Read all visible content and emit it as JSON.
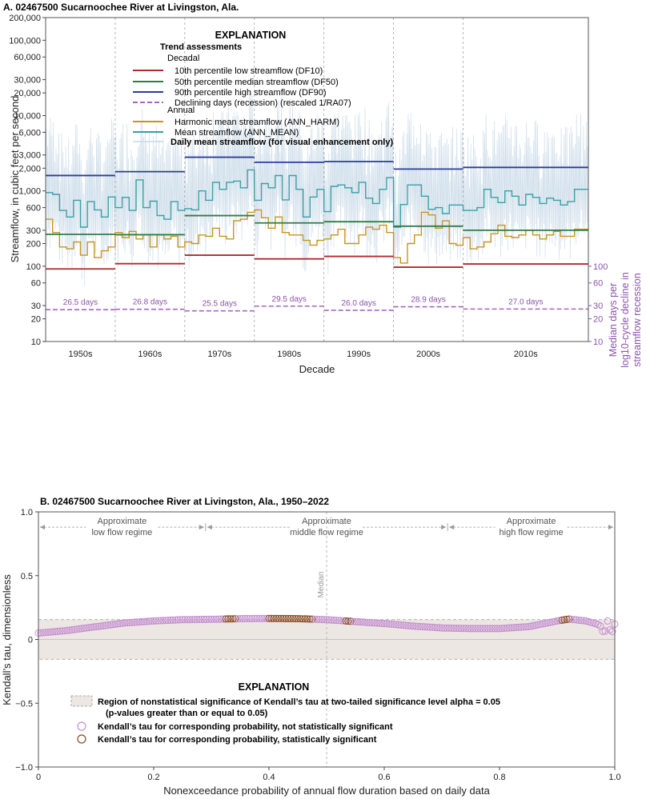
{
  "chart_data": [
    {
      "type": "line",
      "title": "A. 02467500 Sucarnoochee River at Livingston, Ala.",
      "xlabel": "Decade",
      "ylabel": "Streamflow, in cubic feet per second",
      "y2label": [
        "Median days per",
        "log10-cycle decline in",
        "streamflow recession"
      ],
      "y_scale": "log",
      "ylim": [
        10,
        200000
      ],
      "yticks": [
        10,
        20,
        30,
        60,
        100,
        200,
        300,
        600,
        1000,
        2000,
        3000,
        6000,
        10000,
        20000,
        30000,
        60000,
        100000,
        200000
      ],
      "ytick_labels": [
        "10",
        "20",
        "30",
        "60",
        "100",
        "200",
        "300",
        "600",
        "1,000",
        "2,000",
        "3,000",
        "6,000",
        "10,000",
        "20,000",
        "30,000",
        "60,000",
        "100,000",
        "200,000"
      ],
      "y2ticks": [
        10,
        20,
        30,
        60,
        100
      ],
      "y2tick_labels": [
        "10",
        "20",
        "30",
        "60",
        "100"
      ],
      "xlim": [
        1945,
        2023
      ],
      "decades": [
        "1950s",
        "1960s",
        "1970s",
        "1980s",
        "1990s",
        "2000s",
        "2010s"
      ],
      "decade_bounds": [
        [
          1945,
          1955
        ],
        [
          1955,
          1965
        ],
        [
          1965,
          1975
        ],
        [
          1975,
          1985
        ],
        [
          1985,
          1995
        ],
        [
          1995,
          2005
        ],
        [
          2005,
          2023
        ]
      ],
      "legend": {
        "title": "EXPLANATION",
        "heading": "Trend assessments",
        "decadal_label": "Decadal",
        "annual_label": "Annual",
        "df10": "10th percentile low streamflow (DF10)",
        "df50": "50th percentile median streamflow (DF50)",
        "df90": "90th percentile high streamflow (DF90)",
        "ra07": "Declining days (recession) (rescaled 1/RA07)",
        "harm": "Harmonic mean streamflow (ANN_HARM)",
        "mean": "Mean streamflow (ANN_MEAN)",
        "daily": "Daily mean streamflow (for visual enhancement only)"
      },
      "colors": {
        "df10": "#b2292e",
        "df50": "#2e7d46",
        "df90": "#2c3c9c",
        "ra07": "#a666c4",
        "harm": "#c9931e",
        "mean": "#3a9fa6",
        "daily": "#c7d8e6"
      },
      "series": [
        {
          "name": "DF10",
          "values": [
            92,
            108,
            140,
            125,
            135,
            97,
            107
          ]
        },
        {
          "name": "DF50",
          "values": [
            265,
            262,
            470,
            375,
            390,
            340,
            300
          ]
        },
        {
          "name": "DF90",
          "values": [
            1600,
            1800,
            2800,
            2400,
            2450,
            1950,
            2050
          ]
        },
        {
          "name": "RA07",
          "values": [
            26.5,
            26.8,
            25.5,
            29.5,
            26.0,
            28.9,
            27.0
          ],
          "labels": [
            "26.5 days",
            "26.8 days",
            "25.5 days",
            "29.5 days",
            "26.0 days",
            "28.9 days",
            "27.0 days"
          ]
        },
        {
          "name": "ANN_MEAN",
          "years": [
            1945,
            1946,
            1947,
            1948,
            1949,
            1950,
            1951,
            1952,
            1953,
            1954,
            1955,
            1956,
            1957,
            1958,
            1959,
            1960,
            1961,
            1962,
            1963,
            1964,
            1965,
            1966,
            1967,
            1968,
            1969,
            1970,
            1971,
            1972,
            1973,
            1974,
            1975,
            1976,
            1977,
            1978,
            1979,
            1980,
            1981,
            1982,
            1983,
            1984,
            1985,
            1986,
            1987,
            1988,
            1989,
            1990,
            1991,
            1992,
            1993,
            1994,
            1995,
            1996,
            1997,
            1998,
            1999,
            2000,
            2001,
            2002,
            2003,
            2004,
            2005,
            2006,
            2007,
            2008,
            2009,
            2010,
            2011,
            2012,
            2013,
            2014,
            2015,
            2016,
            2017,
            2018,
            2019,
            2020,
            2021,
            2022
          ],
          "values": [
            950,
            900,
            550,
            450,
            750,
            330,
            720,
            560,
            450,
            830,
            600,
            820,
            550,
            1400,
            600,
            730,
            470,
            420,
            720,
            550,
            580,
            560,
            1000,
            750,
            1300,
            1050,
            1300,
            1350,
            1100,
            1900,
            750,
            1250,
            1100,
            1600,
            760,
            1600,
            1050,
            450,
            830,
            1050,
            530,
            1150,
            1200,
            1100,
            950,
            1300,
            800,
            680,
            1050,
            1500,
            330,
            660,
            1200,
            1200,
            850,
            570,
            600,
            500,
            650,
            650,
            550,
            550,
            600,
            1050,
            820,
            700,
            1000,
            850,
            650,
            900,
            820,
            680,
            800,
            750,
            650,
            720,
            1050,
            1050
          ]
        },
        {
          "name": "ANN_HARM",
          "years": [
            1945,
            1946,
            1947,
            1948,
            1949,
            1950,
            1951,
            1952,
            1953,
            1954,
            1955,
            1956,
            1957,
            1958,
            1959,
            1960,
            1961,
            1962,
            1963,
            1964,
            1965,
            1966,
            1967,
            1968,
            1969,
            1970,
            1971,
            1972,
            1973,
            1974,
            1975,
            1976,
            1977,
            1978,
            1979,
            1980,
            1981,
            1982,
            1983,
            1984,
            1985,
            1986,
            1987,
            1988,
            1989,
            1990,
            1991,
            1992,
            1993,
            1994,
            1995,
            1996,
            1997,
            1998,
            1999,
            2000,
            2001,
            2002,
            2003,
            2004,
            2005,
            2006,
            2007,
            2008,
            2009,
            2010,
            2011,
            2012,
            2013,
            2014,
            2015,
            2016,
            2017,
            2018,
            2019,
            2020,
            2021,
            2022
          ],
          "values": [
            420,
            280,
            180,
            170,
            210,
            140,
            210,
            130,
            160,
            180,
            280,
            240,
            290,
            230,
            260,
            180,
            260,
            230,
            250,
            180,
            210,
            200,
            260,
            250,
            320,
            250,
            230,
            400,
            420,
            520,
            560,
            440,
            320,
            450,
            280,
            260,
            260,
            220,
            190,
            220,
            230,
            260,
            310,
            200,
            200,
            260,
            330,
            310,
            350,
            280,
            130,
            110,
            200,
            260,
            520,
            480,
            320,
            400,
            200,
            190,
            240,
            170,
            180,
            210,
            270,
            350,
            250,
            240,
            260,
            300,
            260,
            230,
            260,
            290,
            250,
            250,
            310,
            310
          ]
        }
      ]
    },
    {
      "type": "scatter",
      "title": "B. 02467500 Sucarnoochee River at Livingston, Ala., 1950–2022",
      "xlabel": "Nonexceedance probability of annual flow duration based on daily data",
      "ylabel": "Kendall’s tau, dimensionless",
      "xlim": [
        0,
        1
      ],
      "ylim": [
        -1,
        1
      ],
      "xticks": [
        0,
        0.2,
        0.4,
        0.6,
        0.8,
        1.0
      ],
      "xtick_labels": [
        "0",
        "0.2",
        "0.4",
        "0.6",
        "0.8",
        "1.0"
      ],
      "yticks": [
        -1.0,
        -0.5,
        0,
        0.5,
        1.0
      ],
      "ytick_labels": [
        "−1.0",
        "−0.5",
        "0",
        "0.5",
        "1.0"
      ],
      "significance_band": [
        -0.155,
        0.155
      ],
      "median_line": 0.5,
      "median_label": "Median",
      "regimes": [
        {
          "label": [
            "Approximate",
            "low flow regime"
          ],
          "x_from": 0,
          "x_to": 0.29
        },
        {
          "label": [
            "Approximate",
            "middle flow regime"
          ],
          "x_from": 0.29,
          "x_to": 0.71
        },
        {
          "label": [
            "Approximate",
            "high flow regime"
          ],
          "x_from": 0.71,
          "x_to": 1.0
        }
      ],
      "legend": {
        "title": "EXPLANATION",
        "band": [
          "Region of nonstatistical significance of Kendall’s tau at two-tailed significance level alpha = 0.05",
          "(p-values greater than or equal to 0.05)"
        ],
        "not_sig": "Kendall’s tau for corresponding probability, not statistically significant",
        "sig": "Kendall’s tau for corresponding probability, statistically significant"
      },
      "colors": {
        "not_sig": "#c58fd0",
        "sig": "#8a4a24",
        "band": "#ece7e3",
        "median": "#b8b8b8"
      },
      "tau_curve": [
        [
          0,
          0.05
        ],
        [
          0.05,
          0.07
        ],
        [
          0.1,
          0.1
        ],
        [
          0.15,
          0.13
        ],
        [
          0.2,
          0.145
        ],
        [
          0.25,
          0.155
        ],
        [
          0.3,
          0.158
        ],
        [
          0.35,
          0.163
        ],
        [
          0.4,
          0.165
        ],
        [
          0.45,
          0.163
        ],
        [
          0.5,
          0.155
        ],
        [
          0.55,
          0.14
        ],
        [
          0.6,
          0.125
        ],
        [
          0.65,
          0.105
        ],
        [
          0.7,
          0.09
        ],
        [
          0.75,
          0.085
        ],
        [
          0.8,
          0.085
        ],
        [
          0.85,
          0.1
        ],
        [
          0.9,
          0.145
        ],
        [
          0.92,
          0.16
        ],
        [
          0.95,
          0.145
        ],
        [
          0.97,
          0.12
        ],
        [
          0.98,
          0.09
        ],
        [
          0.99,
          0.11
        ],
        [
          1.0,
          0.08
        ]
      ],
      "significant_ranges": [
        [
          0.325,
          0.345
        ],
        [
          0.4,
          0.475
        ],
        [
          0.53,
          0.545
        ]
      ]
    }
  ]
}
